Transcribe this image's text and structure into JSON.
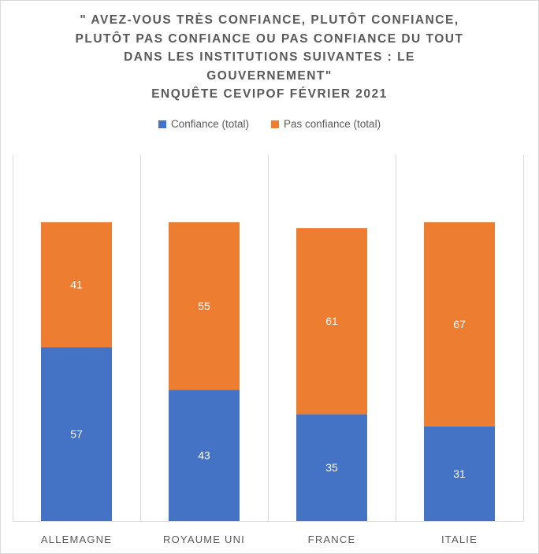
{
  "chart_data": {
    "type": "bar",
    "stacked": true,
    "title_lines": [
      "\" AVEZ-VOUS TRÈS CONFIANCE, PLUTÔT CONFIANCE,",
      "PLUTÔT PAS CONFIANCE OU PAS CONFIANCE DU TOUT",
      "DANS LES INSTITUTIONS SUIVANTES : LE",
      "GOUVERNEMENT\"",
      "ENQUÊTE CEVIPOF FÉVRIER 2021"
    ],
    "categories": [
      "ALLEMAGNE",
      "ROYAUME UNI",
      "FRANCE",
      "ITALIE"
    ],
    "series": [
      {
        "name": "Confiance (total)",
        "color": "#4472c4",
        "values": [
          57,
          43,
          35,
          31
        ]
      },
      {
        "name": "Pas confiance (total)",
        "color": "#ed7d31",
        "values": [
          41,
          55,
          61,
          67
        ]
      }
    ],
    "ylim": [
      0,
      120
    ],
    "grid": "vertical separators",
    "legend_position": "top"
  }
}
